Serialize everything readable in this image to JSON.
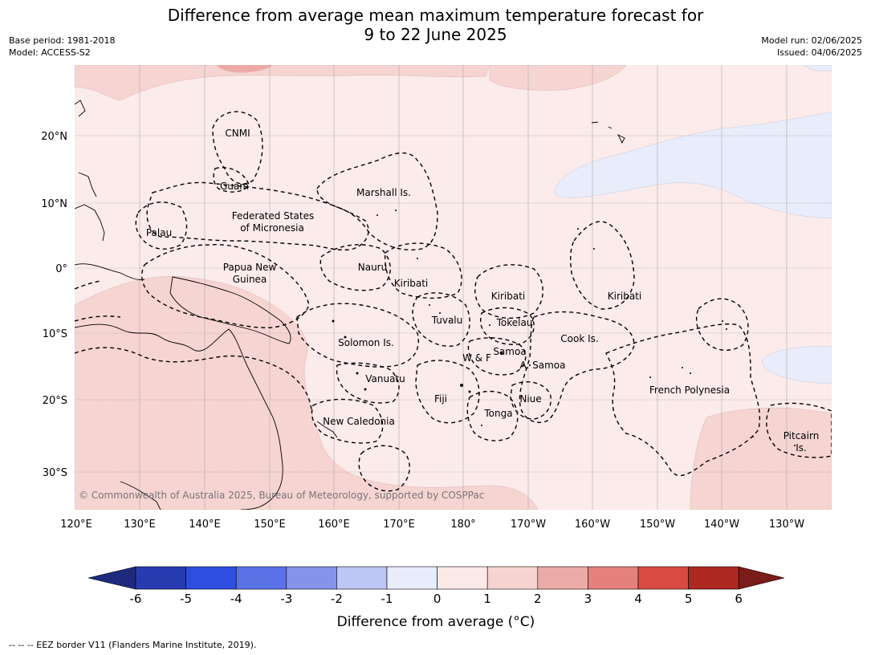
{
  "header": {
    "title_line1": "Difference from average mean maximum temperature forecast for",
    "title_line2": "9 to 22 June 2025",
    "base_period": "Base period: 1981-2018",
    "model": "Model: ACCESS-S2",
    "model_run": "Model run: 02/06/2025",
    "issued": "Issued: 04/06/2025"
  },
  "map": {
    "lon_ticks": [
      "120°E",
      "130°E",
      "140°E",
      "150°E",
      "160°E",
      "170°E",
      "180°",
      "170°W",
      "160°W",
      "150°W",
      "140°W",
      "130°W"
    ],
    "lat_ticks": [
      "20°N",
      "10°N",
      "0°",
      "10°S",
      "20°S",
      "30°S"
    ],
    "copyright": "© Commonwealth of Australia 2025, Bureau of Meteorology, supported by COSPPac",
    "labels": [
      {
        "id": "cnmi",
        "text": "CNMI"
      },
      {
        "id": "guam",
        "text": "Guam"
      },
      {
        "id": "marshall",
        "text": "Marshall Is."
      },
      {
        "id": "fsm1",
        "text": "Federated States"
      },
      {
        "id": "fsm2",
        "text": "of Micronesia"
      },
      {
        "id": "palau",
        "text": "Palau"
      },
      {
        "id": "png1",
        "text": "Papua New"
      },
      {
        "id": "png2",
        "text": "Guinea"
      },
      {
        "id": "nauru",
        "text": "Nauru"
      },
      {
        "id": "kiribati-w",
        "text": "Kiribati"
      },
      {
        "id": "kiribati-c",
        "text": "Kiribati"
      },
      {
        "id": "kiribati-e",
        "text": "Kiribati"
      },
      {
        "id": "tuvalu",
        "text": "Tuvalu"
      },
      {
        "id": "tokelau",
        "text": "Tokelau"
      },
      {
        "id": "cook",
        "text": "Cook Is."
      },
      {
        "id": "solomon",
        "text": "Solomon Is."
      },
      {
        "id": "samoa",
        "text": "Samoa"
      },
      {
        "id": "wf",
        "text": "W & F"
      },
      {
        "id": "asamoa",
        "text": "A. Samoa"
      },
      {
        "id": "vanuatu",
        "text": "Vanuatu"
      },
      {
        "id": "fiji",
        "text": "Fiji"
      },
      {
        "id": "niue",
        "text": "Niue"
      },
      {
        "id": "tonga",
        "text": "Tonga"
      },
      {
        "id": "fp",
        "text": "French Polynesia"
      },
      {
        "id": "newcal",
        "text": "New Caledonia"
      },
      {
        "id": "pitcairn1",
        "text": "Pitcairn"
      },
      {
        "id": "pitcairn2",
        "text": "Is."
      }
    ]
  },
  "colorbar": {
    "ticks": [
      "-6",
      "-5",
      "-4",
      "-3",
      "-2",
      "-1",
      "0",
      "1",
      "2",
      "3",
      "4",
      "5",
      "6"
    ],
    "colors": [
      "#1e2a7e",
      "#273bb1",
      "#2e4ee0",
      "#5a72e6",
      "#8594ea",
      "#bdc6f4",
      "#e8ecfb",
      "#fbe9e8",
      "#f6d3d1",
      "#ecaaa7",
      "#e4817d",
      "#d94a42",
      "#ae2822",
      "#7a1c19"
    ],
    "title": "Difference from average (°C)"
  },
  "footer": {
    "legend_text": "--  --  -- EEZ border V11 (Flanders Marine Institute, 2019)."
  }
}
